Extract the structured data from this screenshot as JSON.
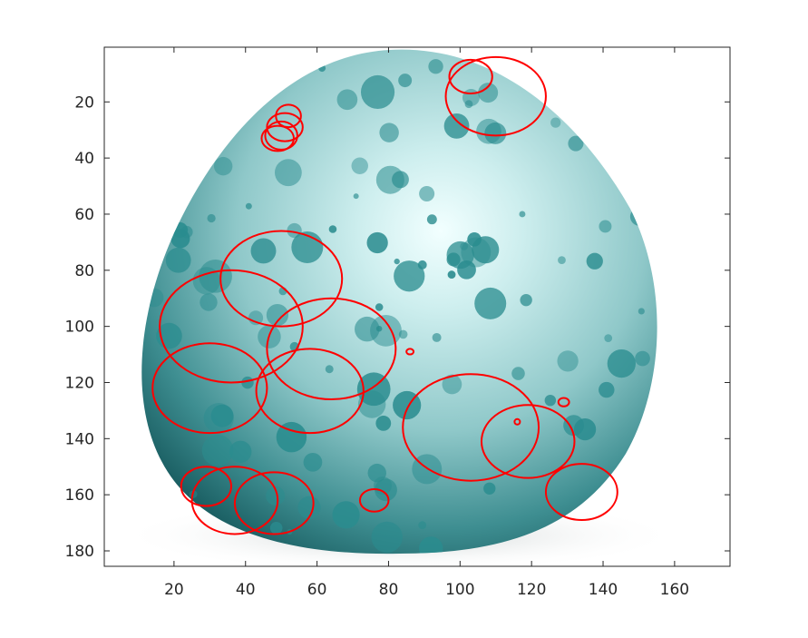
{
  "figure": {
    "background": "#ffffff",
    "circle_color": "#ff0000"
  },
  "axes": {
    "x": {
      "min": 0.5,
      "max": 175.5,
      "ticks": [
        20,
        40,
        60,
        80,
        100,
        120,
        140,
        160
      ],
      "labels": [
        "20",
        "40",
        "60",
        "80",
        "100",
        "120",
        "140",
        "160"
      ]
    },
    "y": {
      "min": 0.5,
      "max": 185.5,
      "reversed": true,
      "ticks": [
        20,
        40,
        60,
        80,
        100,
        120,
        140,
        160,
        180
      ],
      "labels": [
        "20",
        "40",
        "60",
        "80",
        "100",
        "120",
        "140",
        "160",
        "180"
      ]
    },
    "box": true
  },
  "image": {
    "subject": "speckled teal egg",
    "egg_colors": {
      "light": "#e6fbfb",
      "mid": "#9fd6d6",
      "dark": "#1f6f73",
      "spot": "#2a8c8f"
    }
  },
  "detections": [
    {
      "cx": 103,
      "cy": 11,
      "rx": 6,
      "ry": 6
    },
    {
      "cx": 110,
      "cy": 18,
      "rx": 14,
      "ry": 14
    },
    {
      "cx": 52,
      "cy": 25,
      "rx": 3.5,
      "ry": 4
    },
    {
      "cx": 51,
      "cy": 29,
      "rx": 5,
      "ry": 5
    },
    {
      "cx": 50,
      "cy": 32,
      "rx": 4.5,
      "ry": 5
    },
    {
      "cx": 49,
      "cy": 33,
      "rx": 4.5,
      "ry": 4.5
    },
    {
      "cx": 50,
      "cy": 83,
      "rx": 17,
      "ry": 17
    },
    {
      "cx": 36,
      "cy": 100,
      "rx": 20,
      "ry": 20
    },
    {
      "cx": 64,
      "cy": 108,
      "rx": 18,
      "ry": 18
    },
    {
      "cx": 86,
      "cy": 109,
      "rx": 1,
      "ry": 1
    },
    {
      "cx": 30,
      "cy": 122,
      "rx": 16,
      "ry": 16
    },
    {
      "cx": 58,
      "cy": 123,
      "rx": 15,
      "ry": 15
    },
    {
      "cx": 103,
      "cy": 136,
      "rx": 19,
      "ry": 19
    },
    {
      "cx": 129,
      "cy": 127,
      "rx": 1.5,
      "ry": 1.5
    },
    {
      "cx": 116,
      "cy": 134,
      "rx": 0.5,
      "ry": 0.5
    },
    {
      "cx": 119,
      "cy": 141,
      "rx": 13,
      "ry": 13
    },
    {
      "cx": 134,
      "cy": 159,
      "rx": 10,
      "ry": 10
    },
    {
      "cx": 29,
      "cy": 157,
      "rx": 7,
      "ry": 7
    },
    {
      "cx": 37,
      "cy": 162,
      "rx": 12,
      "ry": 12
    },
    {
      "cx": 48,
      "cy": 163,
      "rx": 11,
      "ry": 11
    },
    {
      "cx": 76,
      "cy": 162,
      "rx": 4,
      "ry": 4
    }
  ]
}
